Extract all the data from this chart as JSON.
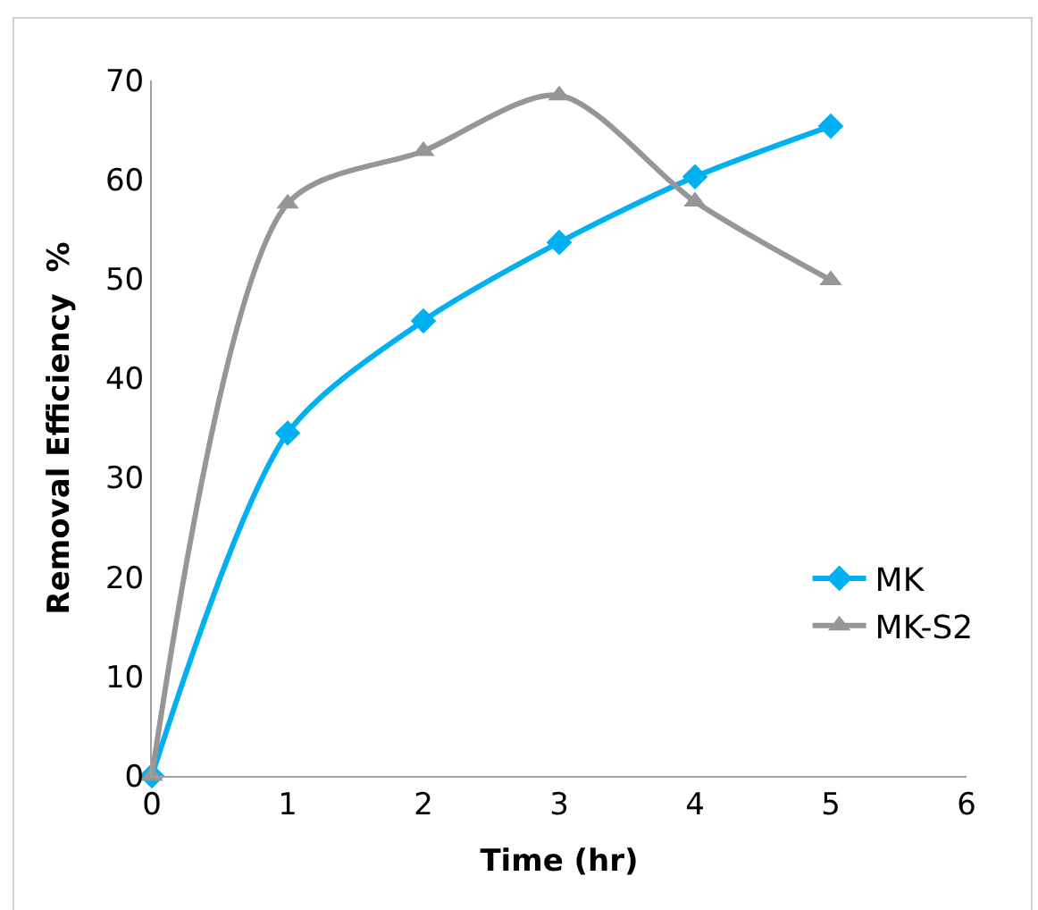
{
  "chart_data": {
    "type": "line",
    "xlabel": "Time (hr)",
    "ylabel": "Removal Efficiency  %",
    "x": [
      0,
      1,
      2,
      3,
      4,
      5
    ],
    "series": [
      {
        "name": "MK",
        "color": "#00b0f0",
        "marker": "diamond",
        "values": [
          0,
          34.5,
          45.8,
          53.7,
          60.3,
          65.4
        ]
      },
      {
        "name": "MK-S2",
        "color": "#969696",
        "marker": "triangle",
        "values": [
          0,
          57.6,
          62.9,
          68.5,
          57.8,
          49.9
        ]
      }
    ],
    "xlim": [
      0,
      6
    ],
    "xticks": [
      0,
      1,
      2,
      3,
      4,
      5,
      6
    ],
    "ylim": [
      0,
      70
    ],
    "yticks": [
      0,
      10,
      20,
      30,
      40,
      50,
      60,
      70
    ],
    "legend": "right",
    "line_style": "solid"
  }
}
